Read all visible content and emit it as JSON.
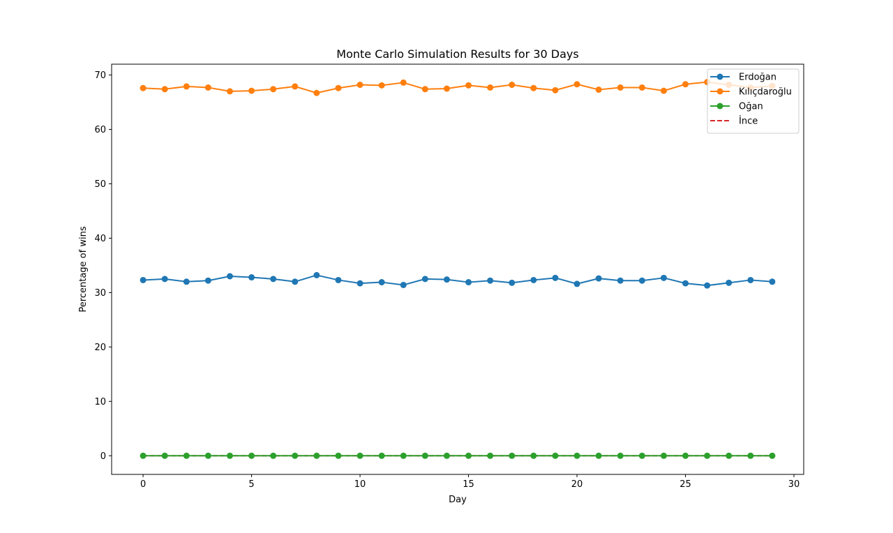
{
  "chart_data": {
    "type": "line",
    "title": "Monte Carlo Simulation Results for 30 Days",
    "xlabel": "Day",
    "ylabel": "Percentage of wins",
    "xlim": [
      -1.45,
      30.45
    ],
    "ylim": [
      -3.43,
      71.99
    ],
    "xticks": [
      0,
      5,
      10,
      15,
      20,
      25,
      30
    ],
    "yticks": [
      0,
      10,
      20,
      30,
      40,
      50,
      60,
      70
    ],
    "grid": false,
    "legend_position": "top-right",
    "x": [
      0,
      1,
      2,
      3,
      4,
      5,
      6,
      7,
      8,
      9,
      10,
      11,
      12,
      13,
      14,
      15,
      16,
      17,
      18,
      19,
      20,
      21,
      22,
      23,
      24,
      25,
      26,
      27,
      28,
      29
    ],
    "series": [
      {
        "name": "Erdoğan",
        "color": "#1f77b4",
        "style": "solid",
        "marker": "circle",
        "values": [
          32.3,
          32.5,
          32.0,
          32.2,
          33.0,
          32.8,
          32.5,
          32.0,
          33.2,
          32.3,
          31.7,
          31.9,
          31.4,
          32.5,
          32.4,
          31.9,
          32.2,
          31.8,
          32.3,
          32.7,
          31.6,
          32.6,
          32.2,
          32.2,
          32.7,
          31.7,
          31.3,
          31.8,
          32.3,
          32.0
        ]
      },
      {
        "name": "Kılıçdaroğlu",
        "color": "#ff7f0e",
        "style": "solid",
        "marker": "circle",
        "values": [
          67.6,
          67.4,
          67.9,
          67.7,
          67.0,
          67.1,
          67.4,
          67.9,
          66.7,
          67.6,
          68.2,
          68.1,
          68.6,
          67.4,
          67.5,
          68.1,
          67.7,
          68.2,
          67.6,
          67.2,
          68.3,
          67.3,
          67.7,
          67.7,
          67.1,
          68.3,
          68.7,
          68.2,
          67.7,
          68.0
        ]
      },
      {
        "name": "Oğan",
        "color": "#2ca02c",
        "style": "solid",
        "marker": "circle",
        "values": [
          0,
          0,
          0,
          0,
          0,
          0,
          0,
          0,
          0,
          0,
          0,
          0,
          0,
          0,
          0,
          0,
          0,
          0,
          0,
          0,
          0,
          0,
          0,
          0,
          0,
          0,
          0,
          0,
          0,
          0
        ]
      },
      {
        "name": "İnce",
        "color": "#d62728",
        "style": "dashed",
        "marker": "none",
        "values": [
          0,
          0,
          0,
          0,
          0,
          0,
          0,
          0,
          0,
          0,
          0,
          0,
          0,
          0,
          0,
          0,
          0,
          0,
          0,
          0,
          0,
          0,
          0,
          0,
          0,
          0,
          0,
          0,
          0,
          0
        ]
      }
    ]
  }
}
